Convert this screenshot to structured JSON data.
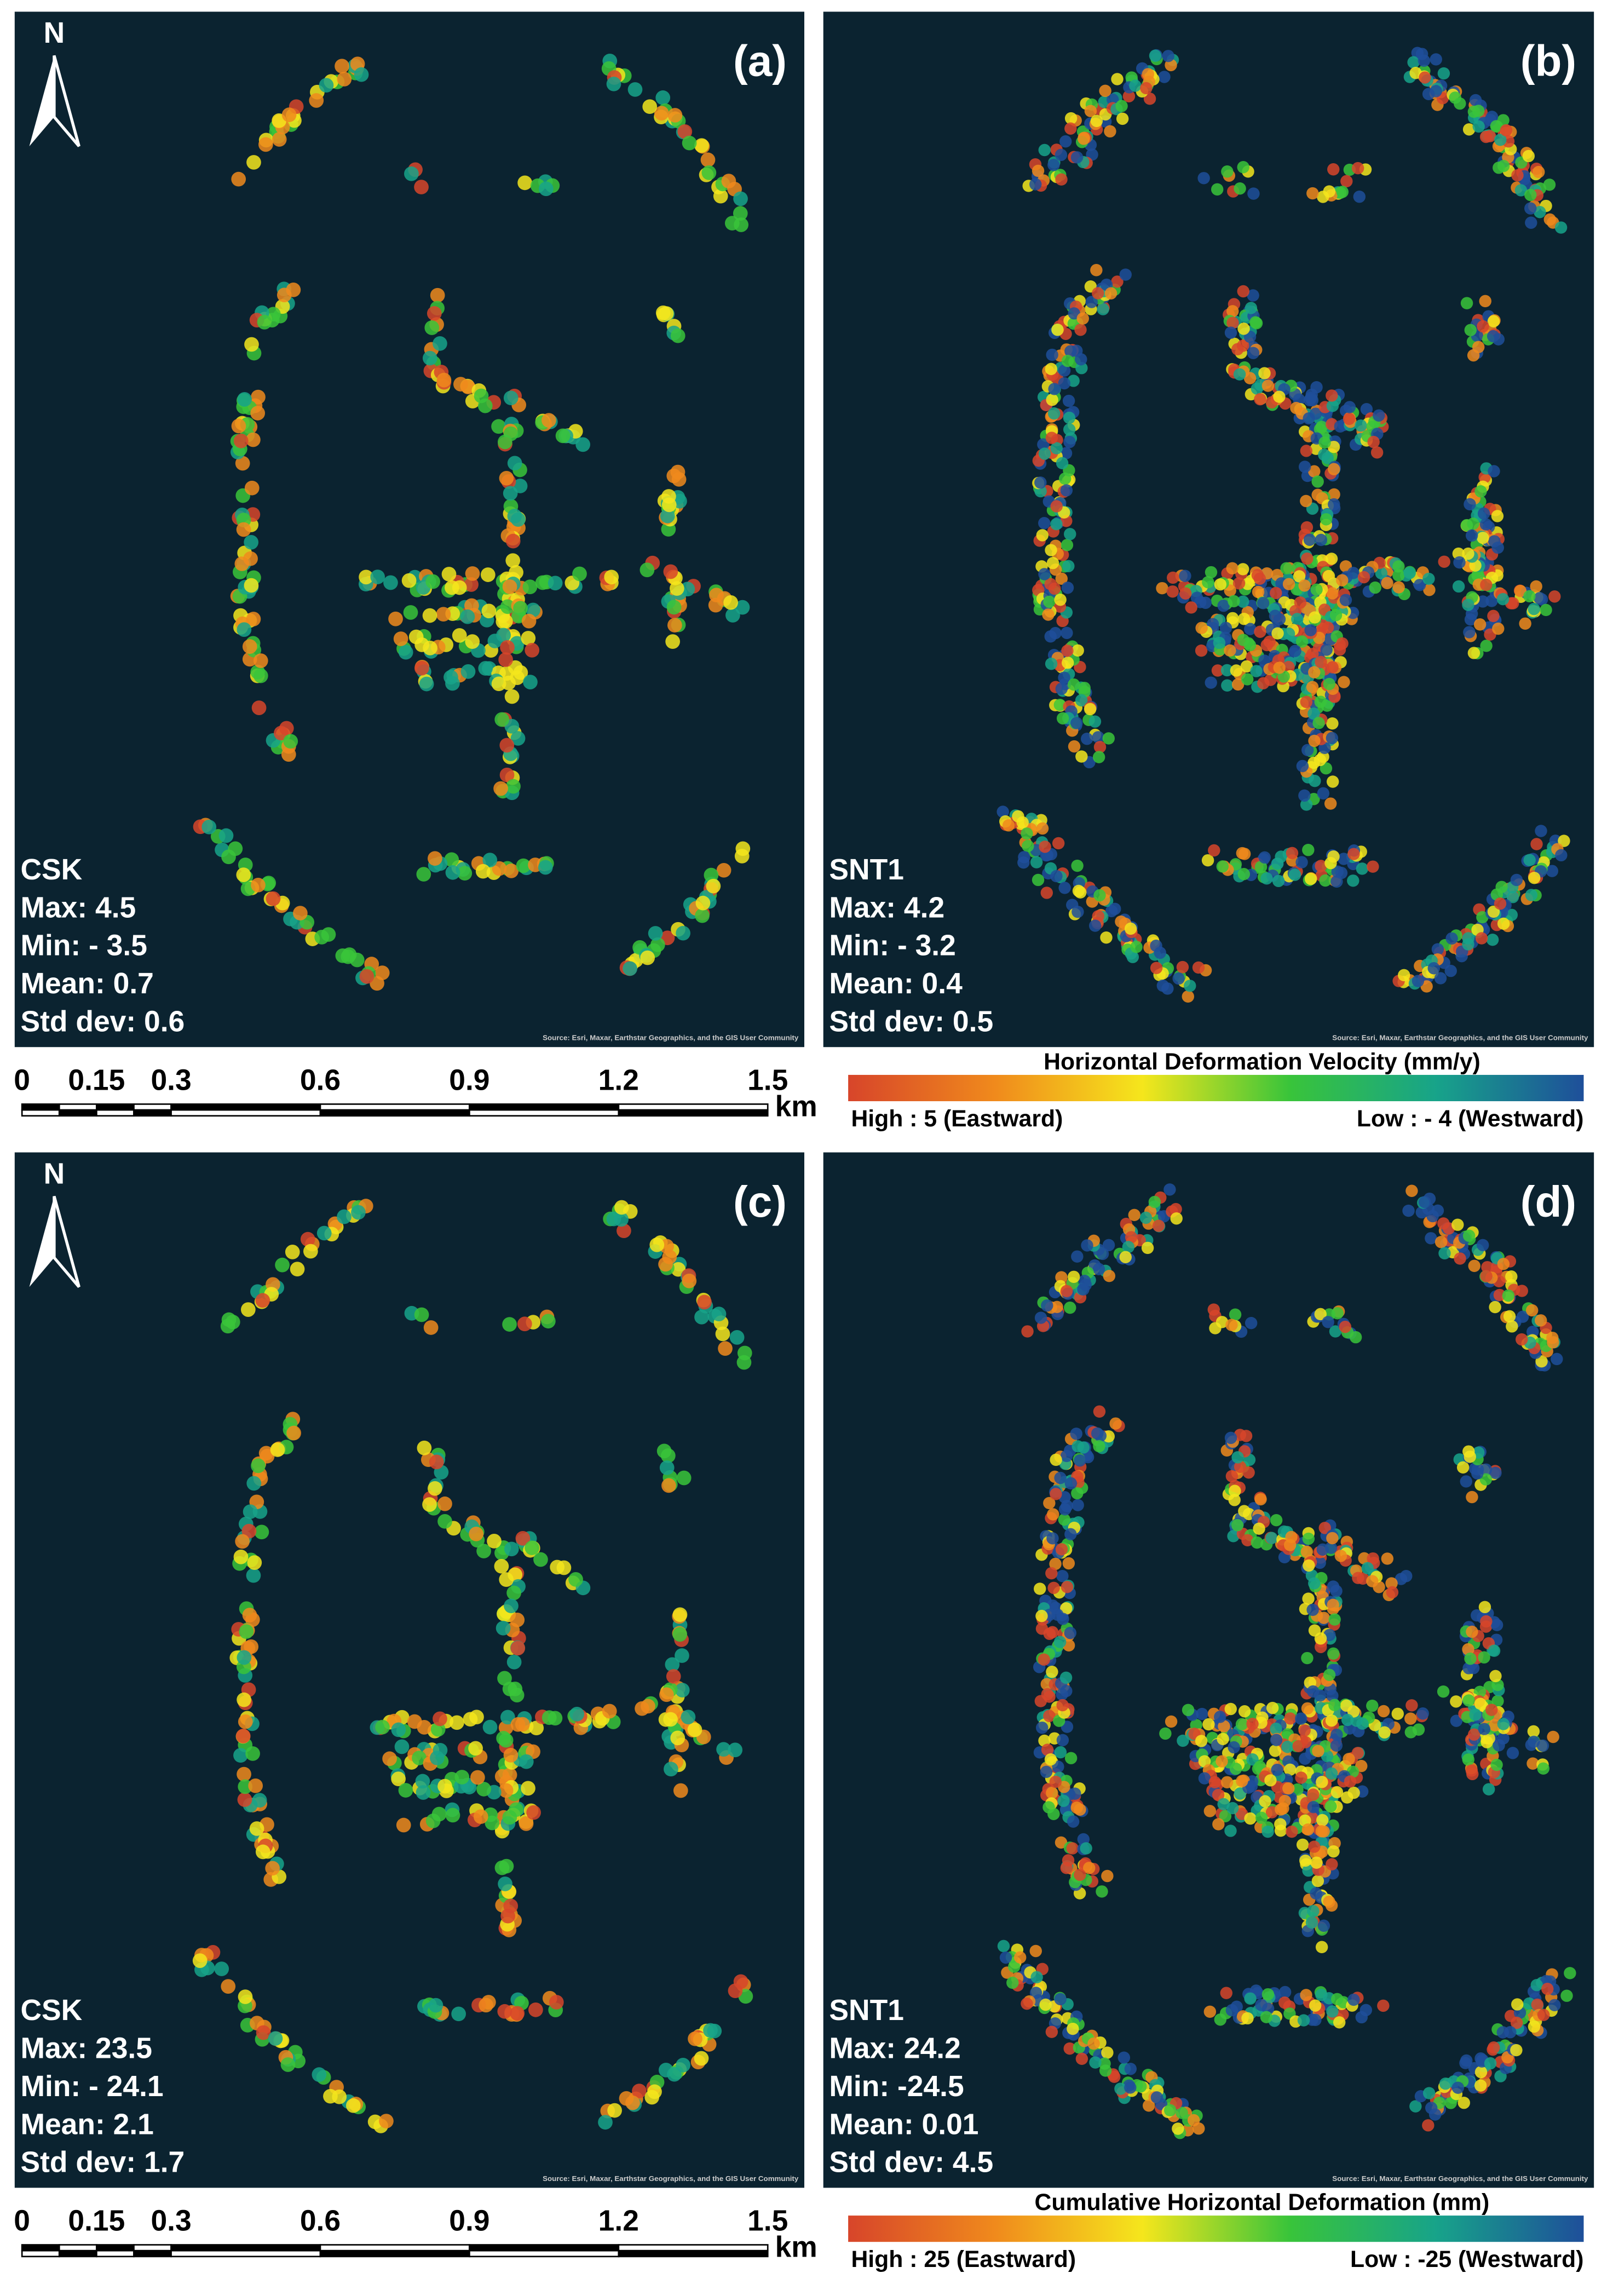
{
  "panels": [
    {
      "label": "(a)",
      "north": "N",
      "stats": [
        "CSK",
        "Max: 4.5",
        "Min: - 3.5",
        "Mean: 0.7",
        "Std dev: 0.6"
      ],
      "source": "Source: Esri, Maxar, Earthstar Geographics, and the GIS User Community"
    },
    {
      "label": "(b)",
      "stats": [
        "SNT1",
        "Max: 4.2",
        "Min: - 3.2",
        "Mean: 0.4",
        "Std dev: 0.5"
      ],
      "source": "Source: Esri, Maxar, Earthstar Geographics, and the GIS User Community"
    },
    {
      "label": "(c)",
      "north": "N",
      "stats": [
        "CSK",
        "Max: 23.5",
        "Min: - 24.1",
        "Mean: 2.1",
        "Std dev: 1.7"
      ],
      "source": "Source: Esri, Maxar, Earthstar Geographics, and the GIS User Community"
    },
    {
      "label": "(d)",
      "stats": [
        "SNT1",
        "Max: 24.2",
        "Min: -24.5",
        "Mean: 0.01",
        "Std dev: 4.5"
      ],
      "source": "Source: Esri, Maxar, Earthstar Geographics, and the GIS User Community"
    }
  ],
  "scale_bars": [
    {
      "ticks": [
        "0",
        "0.15",
        "0.3",
        "0.6",
        "0.9",
        "1.2",
        "1.5"
      ],
      "unit": "km"
    },
    {
      "ticks": [
        "0",
        "0.15",
        "0.3",
        "0.6",
        "0.9",
        "1.2",
        "1.5"
      ],
      "unit": "km"
    }
  ],
  "legends": [
    {
      "title": "Horizontal Deformation Velocity (mm/y)",
      "high": "High : 5 (Eastward)",
      "low": "Low : - 4 (Westward)"
    },
    {
      "title": "Cumulative Horizontal Deformation (mm)",
      "high": "High : 25 (Eastward)",
      "low": "Low : -25 (Westward)"
    }
  ]
}
